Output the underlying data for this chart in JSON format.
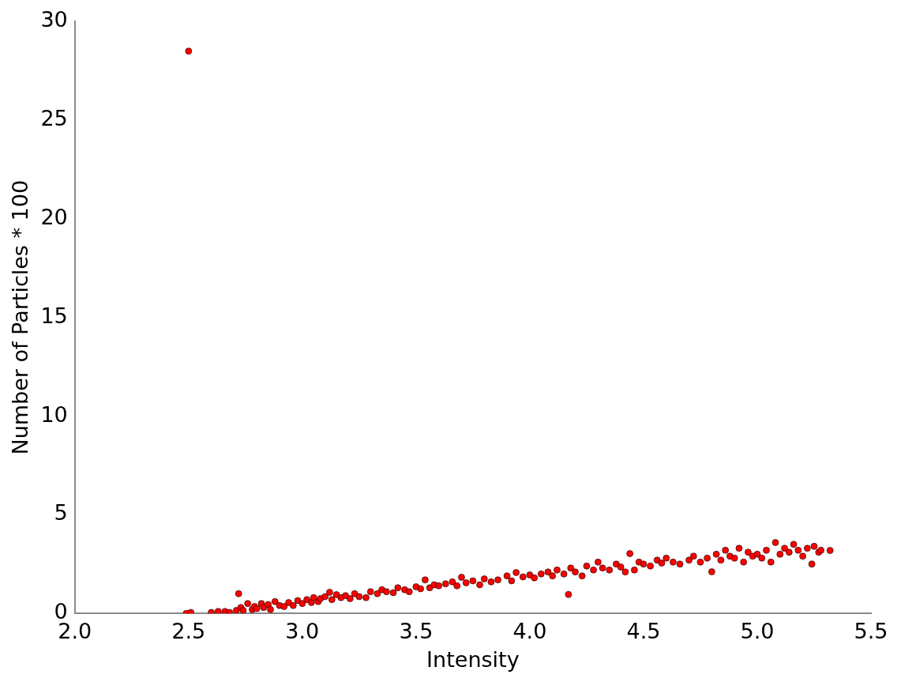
{
  "chart_data": {
    "type": "scatter",
    "xlabel": "Intensity",
    "ylabel": "Number of Particles * 100",
    "xlim": [
      2.0,
      5.5
    ],
    "ylim": [
      0,
      30
    ],
    "xticks": [
      {
        "value": 2.0,
        "label": "2.0"
      },
      {
        "value": 2.5,
        "label": "2.5"
      },
      {
        "value": 3.0,
        "label": "3.0"
      },
      {
        "value": 3.5,
        "label": "3.5"
      },
      {
        "value": 4.0,
        "label": "4.0"
      },
      {
        "value": 4.5,
        "label": "4.5"
      },
      {
        "value": 5.0,
        "label": "5.0"
      },
      {
        "value": 5.5,
        "label": "5.5"
      }
    ],
    "yticks": [
      0,
      5,
      10,
      15,
      20,
      25,
      30
    ],
    "grid": false,
    "legend": false,
    "marker": "circle",
    "series": [
      {
        "color": "#ff0000",
        "x": [
          2.5,
          2.49,
          2.51,
          2.6,
          2.63,
          2.66,
          2.68,
          2.71,
          2.72,
          2.73,
          2.74,
          2.76,
          2.78,
          2.79,
          2.8,
          2.82,
          2.83,
          2.85,
          2.86,
          2.88,
          2.9,
          2.92,
          2.94,
          2.96,
          2.98,
          3.0,
          3.02,
          3.04,
          3.05,
          3.07,
          3.08,
          3.1,
          3.12,
          3.13,
          3.15,
          3.17,
          3.19,
          3.21,
          3.23,
          3.25,
          3.28,
          3.3,
          3.33,
          3.35,
          3.37,
          3.4,
          3.42,
          3.45,
          3.47,
          3.5,
          3.52,
          3.54,
          3.56,
          3.58,
          3.6,
          3.63,
          3.66,
          3.68,
          3.7,
          3.72,
          3.75,
          3.78,
          3.8,
          3.83,
          3.86,
          3.9,
          3.92,
          3.94,
          3.97,
          4.0,
          4.02,
          4.05,
          4.08,
          4.1,
          4.12,
          4.15,
          4.17,
          4.18,
          4.2,
          4.23,
          4.25,
          4.28,
          4.3,
          4.32,
          4.35,
          4.38,
          4.4,
          4.42,
          4.44,
          4.46,
          4.48,
          4.5,
          4.53,
          4.56,
          4.58,
          4.6,
          4.63,
          4.66,
          4.7,
          4.72,
          4.75,
          4.78,
          4.8,
          4.82,
          4.84,
          4.86,
          4.88,
          4.9,
          4.92,
          4.94,
          4.96,
          4.98,
          5.0,
          5.02,
          5.04,
          5.06,
          5.08,
          5.1,
          5.12,
          5.14,
          5.16,
          5.18,
          5.2,
          5.22,
          5.24,
          5.25,
          5.27,
          5.28,
          5.32
        ],
        "values": [
          28.5,
          0.0,
          0.05,
          0.05,
          0.1,
          0.1,
          0.05,
          0.15,
          1.0,
          0.3,
          0.15,
          0.5,
          0.2,
          0.35,
          0.25,
          0.5,
          0.3,
          0.45,
          0.2,
          0.6,
          0.4,
          0.35,
          0.55,
          0.4,
          0.65,
          0.5,
          0.7,
          0.55,
          0.8,
          0.6,
          0.75,
          0.85,
          1.07,
          0.7,
          0.95,
          0.8,
          0.9,
          0.75,
          1.0,
          0.85,
          0.8,
          1.1,
          1.0,
          1.2,
          1.1,
          1.05,
          1.3,
          1.2,
          1.1,
          1.35,
          1.25,
          1.7,
          1.3,
          1.45,
          1.4,
          1.5,
          1.6,
          1.4,
          1.83,
          1.55,
          1.65,
          1.45,
          1.75,
          1.6,
          1.7,
          1.9,
          1.65,
          2.07,
          1.85,
          1.95,
          1.8,
          2.0,
          2.1,
          1.9,
          2.2,
          2.0,
          0.96,
          2.3,
          2.1,
          1.9,
          2.4,
          2.2,
          2.6,
          2.3,
          2.2,
          2.5,
          2.35,
          2.1,
          3.03,
          2.2,
          2.6,
          2.5,
          2.4,
          2.7,
          2.55,
          2.8,
          2.6,
          2.5,
          2.7,
          2.9,
          2.6,
          2.8,
          2.11,
          3.0,
          2.7,
          3.2,
          2.9,
          2.8,
          3.3,
          2.6,
          3.1,
          2.9,
          3.0,
          2.8,
          3.2,
          2.6,
          3.59,
          3.0,
          3.3,
          3.1,
          3.5,
          3.2,
          2.9,
          3.3,
          2.5,
          3.4,
          3.1,
          3.2,
          3.19
        ]
      }
    ]
  }
}
